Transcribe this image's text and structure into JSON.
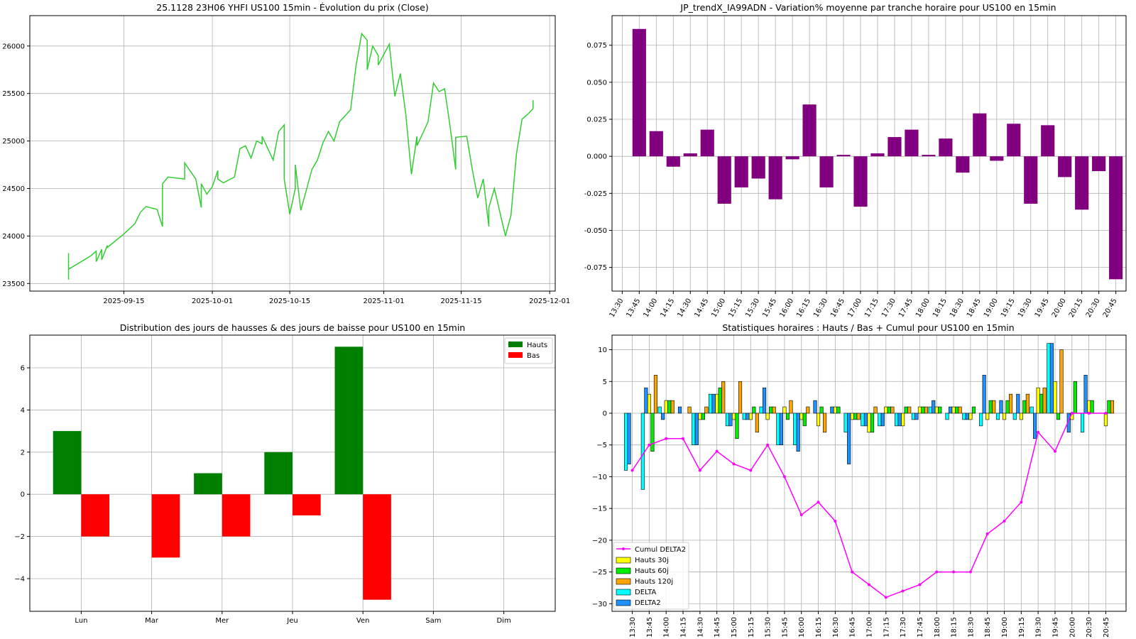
{
  "colors": {
    "price_line": "#32cd32",
    "variation_bar": "#800080",
    "hauts": "#008000",
    "bas": "#ff0000",
    "h30": "#ffff00",
    "h60": "#00ee00",
    "h120": "#ffa500",
    "delta": "#00ffff",
    "delta2": "#1e90ff",
    "cumul": "#ff00ff",
    "grid": "#b0b0b0"
  },
  "chart_data": [
    {
      "type": "line",
      "title": "25.1128 23H06 YHFI US100 15min - Évolution du prix (Close)",
      "x_tick_labels": [
        "2025-09-15",
        "2025-10-01",
        "2025-10-15",
        "2025-11-01",
        "2025-11-15",
        "2025-12-01"
      ],
      "y_ticks": [
        23500,
        24000,
        24500,
        25000,
        25500,
        26000
      ],
      "ylim": [
        23420,
        26320
      ],
      "grid": true,
      "series": [
        {
          "x": [
            "2025-09-05",
            "2025-09-05",
            "2025-09-05",
            "2025-09-09",
            "2025-09-10",
            "2025-09-10",
            "2025-09-11",
            "2025-09-11",
            "2025-09-12",
            "2025-09-12",
            "2025-09-15",
            "2025-09-17",
            "2025-09-18",
            "2025-09-19",
            "2025-09-21",
            "2025-09-22",
            "2025-09-22",
            "2025-09-23",
            "2025-09-26",
            "2025-09-26",
            "2025-09-28",
            "2025-09-29",
            "2025-09-29",
            "2025-09-30",
            "2025-10-01",
            "2025-10-02",
            "2025-10-02",
            "2025-10-03",
            "2025-10-05",
            "2025-10-06",
            "2025-10-07",
            "2025-10-08",
            "2025-10-09",
            "2025-10-10",
            "2025-10-10",
            "2025-10-12",
            "2025-10-13",
            "2025-10-14",
            "2025-10-14",
            "2025-10-15",
            "2025-10-16",
            "2025-10-16",
            "2025-10-17",
            "2025-10-19",
            "2025-10-20",
            "2025-10-21",
            "2025-10-22",
            "2025-10-23",
            "2025-10-24",
            "2025-10-26",
            "2025-10-27",
            "2025-10-28",
            "2025-10-29",
            "2025-10-29",
            "2025-10-30",
            "2025-10-31",
            "2025-10-31",
            "2025-11-02",
            "2025-11-03",
            "2025-11-04",
            "2025-11-05",
            "2025-11-06",
            "2025-11-07",
            "2025-11-07",
            "2025-11-09",
            "2025-11-10",
            "2025-11-11",
            "2025-11-12",
            "2025-11-13",
            "2025-11-14",
            "2025-11-14",
            "2025-11-16",
            "2025-11-17",
            "2025-11-18",
            "2025-11-19",
            "2025-11-20",
            "2025-11-20",
            "2025-11-21",
            "2025-11-23",
            "2025-11-24",
            "2025-11-25",
            "2025-11-26",
            "2025-11-27",
            "2025-11-28",
            "2025-11-28"
          ],
          "y": [
            23820,
            23540,
            23650,
            23790,
            23840,
            23730,
            23860,
            23750,
            23900,
            23880,
            24020,
            24130,
            24250,
            24310,
            24280,
            24100,
            24550,
            24620,
            24600,
            24770,
            24600,
            24300,
            24550,
            24440,
            24520,
            24690,
            24600,
            24560,
            24620,
            24920,
            24950,
            24820,
            25000,
            24970,
            25050,
            24800,
            25100,
            25170,
            24600,
            24230,
            24500,
            24750,
            24270,
            24700,
            24800,
            24980,
            25100,
            25000,
            25200,
            25330,
            25800,
            26130,
            26060,
            25750,
            26000,
            25900,
            25800,
            26020,
            25470,
            25710,
            25270,
            24650,
            25050,
            24950,
            25200,
            25610,
            25520,
            25550,
            25150,
            24700,
            25040,
            25050,
            24700,
            24400,
            24600,
            24100,
            24300,
            24500,
            24000,
            24220,
            24870,
            25230,
            25280,
            25340,
            25430
          ]
        }
      ]
    },
    {
      "type": "bar",
      "title": "JP_trendX_IA99ADN - Variation% moyenne par tranche horaire pour US100 en 15min",
      "categories": [
        "13:30",
        "13:45",
        "14:00",
        "14:15",
        "14:30",
        "14:45",
        "15:00",
        "15:15",
        "15:30",
        "15:45",
        "16:00",
        "16:15",
        "16:30",
        "16:45",
        "17:00",
        "17:15",
        "17:30",
        "17:45",
        "18:00",
        "18:15",
        "18:30",
        "18:45",
        "19:00",
        "19:15",
        "19:30",
        "19:45",
        "20:00",
        "20:15",
        "20:30",
        "20:45"
      ],
      "values": [
        0.0,
        0.086,
        0.017,
        -0.007,
        0.002,
        0.018,
        -0.032,
        -0.021,
        -0.015,
        -0.029,
        -0.002,
        0.035,
        -0.021,
        0.001,
        -0.034,
        0.002,
        0.013,
        0.018,
        0.001,
        0.012,
        -0.011,
        0.029,
        -0.003,
        0.022,
        -0.032,
        0.021,
        -0.014,
        -0.036,
        -0.01,
        -0.083
      ],
      "y_ticks": [
        -0.075,
        -0.05,
        -0.025,
        0.0,
        0.025,
        0.05,
        0.075
      ],
      "ylim": [
        -0.091,
        0.095
      ],
      "grid": true
    },
    {
      "type": "bar",
      "title": "Distribution des jours de hausses & des jours de baisse pour US100 en 15min",
      "categories": [
        "Lun",
        "Mar",
        "Mer",
        "Jeu",
        "Ven",
        "Sam",
        "Dim"
      ],
      "series": [
        {
          "name": "Hauts",
          "values": [
            3,
            0,
            1,
            2,
            7,
            0,
            0
          ]
        },
        {
          "name": "Bas",
          "values": [
            -2,
            -3,
            -2,
            -1,
            -5,
            0,
            0
          ]
        }
      ],
      "y_ticks": [
        -4,
        -2,
        0,
        2,
        4,
        6
      ],
      "ylim": [
        -5.55,
        7.55
      ],
      "legend": "top-right",
      "grid": true
    },
    {
      "type": "bar",
      "title": "Statistiques horaires : Hauts / Bas + Cumul pour US100 en 15min",
      "categories": [
        "13:30",
        "13:45",
        "14:00",
        "14:15",
        "14:30",
        "14:45",
        "15:00",
        "15:15",
        "15:30",
        "15:45",
        "16:00",
        "16:15",
        "16:30",
        "16:45",
        "17:00",
        "17:15",
        "17:30",
        "17:45",
        "18:00",
        "18:15",
        "18:30",
        "18:45",
        "19:00",
        "19:15",
        "19:30",
        "19:45",
        "20:00",
        "20:30",
        "20:45"
      ],
      "series": [
        {
          "name": "Hauts 30j",
          "values": [
            0,
            3,
            2,
            0,
            -1,
            3,
            -1,
            -1,
            -1,
            1,
            -1,
            -2,
            1,
            -1,
            -3,
            1,
            -2,
            1,
            1,
            1,
            -1,
            -1,
            -1,
            -1,
            4,
            5,
            -1,
            2,
            -2
          ]
        },
        {
          "name": "Hauts 60j",
          "values": [
            0,
            -6,
            2,
            0,
            -1,
            4,
            -4,
            1,
            1,
            -1,
            -2,
            1,
            1,
            -1,
            -3,
            1,
            1,
            1,
            1,
            1,
            1,
            2,
            2,
            2,
            3,
            -1,
            5,
            2,
            2
          ]
        },
        {
          "name": "Hauts 120j",
          "values": [
            0,
            6,
            2,
            1,
            1,
            5,
            5,
            -3,
            1,
            2,
            1,
            -3,
            0,
            -1,
            1,
            1,
            1,
            1,
            0,
            1,
            0,
            2,
            3,
            3,
            4,
            10,
            0,
            0,
            2
          ]
        },
        {
          "name": "DELTA",
          "values": [
            -9,
            -12,
            1,
            0,
            -5,
            3,
            -2,
            -1,
            1,
            -5,
            -5,
            0,
            0,
            -3,
            -2,
            -2,
            -2,
            -1,
            1,
            -1,
            -1,
            -2,
            -1,
            -1,
            1,
            11,
            0,
            -3,
            0
          ]
        },
        {
          "name": "DELTA2",
          "values": [
            -8,
            4,
            -1,
            1,
            -5,
            3,
            -2,
            -1,
            4,
            -5,
            -6,
            2,
            1,
            -8,
            -2,
            -2,
            -2,
            -1,
            2,
            1,
            -1,
            6,
            2,
            3,
            -4,
            11,
            -3,
            6,
            0
          ]
        },
        {
          "name": "Cumul DELTA2",
          "values": [
            -9,
            -5,
            -4,
            -4,
            -9,
            -6,
            -8,
            -9,
            -5,
            -10,
            -16,
            -14,
            -17,
            -25,
            -27,
            -29,
            -28,
            -27,
            -25,
            -25,
            -25,
            -19,
            -17,
            -14,
            -3,
            -6,
            0,
            0,
            0
          ]
        }
      ],
      "y_ticks": [
        -30,
        -25,
        -20,
        -15,
        -10,
        -5,
        0,
        5,
        10
      ],
      "ylim": [
        -31.2,
        12.3
      ],
      "legend": "bottom-left",
      "grid": true
    }
  ]
}
